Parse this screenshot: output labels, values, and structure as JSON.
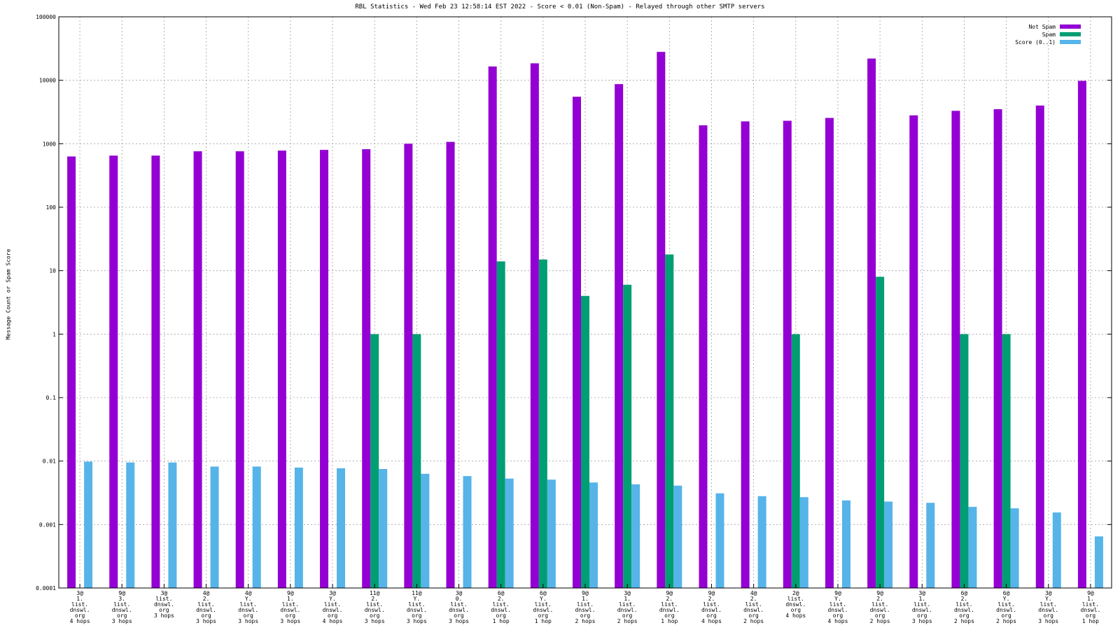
{
  "chart_data": {
    "type": "bar",
    "title": "RBL Statistics - Wed Feb 23 12:58:14 EST 2022 - Score < 0.01 (Non-Spam) - Relayed through other SMTP servers",
    "ylabel": "Message Count or Spam Score",
    "xlabel": "",
    "yscale": "log",
    "ylim": [
      0.0001,
      100000
    ],
    "yticks": [
      "0.0001",
      "0.001",
      "0.01",
      "0.1",
      "1",
      "10",
      "100",
      "1000",
      "10000",
      "100000"
    ],
    "grid": true,
    "legend_position": "top-right",
    "colors": {
      "Not Spam": "#9400d3",
      "Spam": "#009e73",
      "Score (0..1)": "#56b4e9"
    },
    "categories": [
      [
        "3@",
        "1.",
        "list.",
        "dnswl.",
        "org",
        "4 hops"
      ],
      [
        "9@",
        "3.",
        "list.",
        "dnswl.",
        "org",
        "3 hops"
      ],
      [
        "3@",
        "list.",
        "dnswl.",
        "org",
        "3 hops"
      ],
      [
        "4@",
        "2.",
        "list.",
        "dnswl.",
        "org",
        "3 hops"
      ],
      [
        "4@",
        "Y.",
        "list.",
        "dnswl.",
        "org",
        "3 hops"
      ],
      [
        "9@",
        "1.",
        "list.",
        "dnswl.",
        "org",
        "3 hops"
      ],
      [
        "3@",
        "Y.",
        "list.",
        "dnswl.",
        "org",
        "4 hops"
      ],
      [
        "11@",
        "2.",
        "list.",
        "dnswl.",
        "org",
        "3 hops"
      ],
      [
        "11@",
        "Y.",
        "list.",
        "dnswl.",
        "org",
        "3 hops"
      ],
      [
        "3@",
        "0.",
        "list.",
        "dnswl.",
        "org",
        "3 hops"
      ],
      [
        "6@",
        "2.",
        "list.",
        "dnswl.",
        "org",
        "1 hop"
      ],
      [
        "6@",
        "Y.",
        "list.",
        "dnswl.",
        "org",
        "1 hop"
      ],
      [
        "9@",
        "1.",
        "list.",
        "dnswl.",
        "org",
        "2 hops"
      ],
      [
        "3@",
        "1.",
        "list.",
        "dnswl.",
        "org",
        "2 hops"
      ],
      [
        "9@",
        "2.",
        "list.",
        "dnswl.",
        "org",
        "1 hop"
      ],
      [
        "9@",
        "2.",
        "list.",
        "dnswl.",
        "org",
        "4 hops"
      ],
      [
        "4@",
        "2.",
        "list.",
        "dnswl.",
        "org",
        "2 hops"
      ],
      [
        "2@",
        "list.",
        "dnswl.",
        "org",
        "4 hops"
      ],
      [
        "9@",
        "Y.",
        "list.",
        "dnswl.",
        "org",
        "4 hops"
      ],
      [
        "9@",
        "2.",
        "list.",
        "dnswl.",
        "org",
        "2 hops"
      ],
      [
        "3@",
        "1.",
        "list.",
        "dnswl.",
        "org",
        "3 hops"
      ],
      [
        "6@",
        "2.",
        "list.",
        "dnswl.",
        "org",
        "2 hops"
      ],
      [
        "6@",
        "Y.",
        "list.",
        "dnswl.",
        "org",
        "2 hops"
      ],
      [
        "3@",
        "Y.",
        "list.",
        "dnswl.",
        "org",
        "3 hops"
      ],
      [
        "9@",
        "1.",
        "list.",
        "dnswl.",
        "org",
        "1 hop"
      ]
    ],
    "series": [
      {
        "name": "Not Spam",
        "values": [
          630,
          650,
          650,
          760,
          760,
          780,
          800,
          820,
          1000,
          1070,
          16500,
          18500,
          5500,
          8700,
          28000,
          1950,
          2250,
          2300,
          2550,
          22000,
          2800,
          3300,
          3500,
          4000,
          9800
        ]
      },
      {
        "name": "Spam",
        "values": [
          null,
          null,
          null,
          null,
          null,
          null,
          null,
          1,
          1,
          null,
          14,
          15,
          4,
          6,
          18,
          null,
          null,
          1,
          null,
          8,
          null,
          1,
          1,
          null,
          null
        ]
      },
      {
        "name": "Score (0..1)",
        "values": [
          0.0098,
          0.0095,
          0.0095,
          0.0082,
          0.0082,
          0.0079,
          0.0077,
          0.0075,
          0.0063,
          0.0058,
          0.0053,
          0.0051,
          0.0046,
          0.0043,
          0.0041,
          0.0031,
          0.0028,
          0.0027,
          0.0024,
          0.0023,
          0.0022,
          0.0019,
          0.0018,
          0.00155,
          0.00065
        ]
      }
    ]
  }
}
